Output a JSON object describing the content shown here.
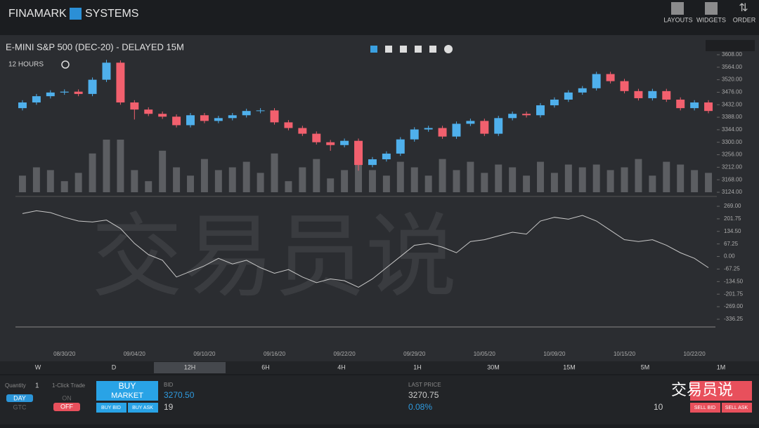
{
  "header": {
    "brand": "FINAMARK",
    "brand_suffix": "SYSTEMS",
    "nav": [
      "LAYOUTS",
      "WIDGETS",
      "ORDER"
    ]
  },
  "chart_data": {
    "type": "candlestick",
    "title": "E-MINI S&P 500 (DEC-20) - DELAYED 15M",
    "interval": "12 HOURS",
    "categories": [
      null,
      null,
      null,
      "08/30/20",
      null,
      null,
      null,
      null,
      "09/04/20",
      null,
      null,
      null,
      null,
      "09/10/20",
      null,
      null,
      null,
      null,
      "09/16/20",
      null,
      null,
      null,
      null,
      "09/22/20",
      null,
      null,
      null,
      null,
      "09/29/20",
      null,
      null,
      null,
      null,
      "10/05/20",
      null,
      null,
      null,
      null,
      "10/09/20",
      null,
      null,
      null,
      null,
      "10/15/20",
      null,
      null,
      null,
      null,
      "10/22/20",
      null
    ],
    "open": [
      3420,
      3440,
      3462,
      3475,
      3478,
      3470,
      3520,
      3580,
      3440,
      3415,
      3400,
      3390,
      3360,
      3395,
      3375,
      3385,
      3395,
      3410,
      3412,
      3370,
      3350,
      3330,
      3300,
      3290,
      3305,
      3220,
      3240,
      3260,
      3310,
      3345,
      3350,
      3320,
      3365,
      3375,
      3330,
      3385,
      3400,
      3395,
      3430,
      3450,
      3475,
      3490,
      3540,
      3515,
      3480,
      3455,
      3480,
      3450,
      3420,
      3440
    ],
    "high": [
      3448,
      3470,
      3483,
      3486,
      3486,
      3528,
      3590,
      3588,
      3448,
      3423,
      3408,
      3398,
      3403,
      3403,
      3393,
      3403,
      3418,
      3420,
      3420,
      3378,
      3358,
      3338,
      3308,
      3313,
      3313,
      3248,
      3268,
      3318,
      3353,
      3358,
      3358,
      3373,
      3383,
      3383,
      3393,
      3408,
      3408,
      3438,
      3458,
      3483,
      3498,
      3548,
      3548,
      3523,
      3488,
      3488,
      3488,
      3458,
      3448,
      3448
    ],
    "low": [
      3412,
      3432,
      3454,
      3467,
      3462,
      3462,
      3512,
      3432,
      3380,
      3392,
      3382,
      3352,
      3352,
      3367,
      3367,
      3377,
      3387,
      3402,
      3362,
      3342,
      3322,
      3292,
      3270,
      3282,
      3200,
      3212,
      3232,
      3252,
      3302,
      3337,
      3312,
      3312,
      3357,
      3322,
      3322,
      3377,
      3387,
      3387,
      3422,
      3442,
      3467,
      3482,
      3507,
      3472,
      3447,
      3447,
      3442,
      3412,
      3412,
      3402
    ],
    "close": [
      3440,
      3462,
      3475,
      3478,
      3470,
      3520,
      3580,
      3440,
      3415,
      3400,
      3390,
      3360,
      3395,
      3375,
      3385,
      3395,
      3410,
      3412,
      3370,
      3350,
      3330,
      3300,
      3290,
      3305,
      3220,
      3240,
      3260,
      3310,
      3345,
      3350,
      3320,
      3365,
      3375,
      3330,
      3385,
      3400,
      3395,
      3430,
      3450,
      3475,
      3490,
      3540,
      3515,
      3480,
      3455,
      3480,
      3450,
      3420,
      3440,
      3410
    ],
    "up_color": "#4fb0ec",
    "down_color": "#f2606e",
    "volume": [
      30,
      45,
      40,
      20,
      35,
      70,
      95,
      95,
      40,
      20,
      75,
      45,
      30,
      60,
      40,
      45,
      55,
      35,
      70,
      20,
      45,
      60,
      25,
      40,
      75,
      40,
      30,
      55,
      45,
      30,
      60,
      40,
      55,
      35,
      50,
      45,
      30,
      55,
      35,
      50,
      45,
      50,
      40,
      45,
      60,
      30,
      55,
      50,
      40,
      35
    ],
    "volume_color": "#5c5e62",
    "ylim": [
      3124,
      3608
    ],
    "yticks": [
      {
        "value": 3124,
        "label": "3124.00"
      },
      {
        "value": 3168,
        "label": "3168.00"
      },
      {
        "value": 3212,
        "label": "3212.00"
      },
      {
        "value": 3256,
        "label": "3256.00"
      },
      {
        "value": 3300,
        "label": "3300.00"
      },
      {
        "value": 3344,
        "label": "3344.00"
      },
      {
        "value": 3388,
        "label": "3388.00"
      },
      {
        "value": 3432,
        "label": "3432.00"
      },
      {
        "value": 3476,
        "label": "3476.00"
      },
      {
        "value": 3520,
        "label": "3520.00"
      },
      {
        "value": 3564,
        "label": "3564.00"
      },
      {
        "value": 3608,
        "label": "3608.00"
      }
    ],
    "indicator": {
      "type": "line",
      "color": "#c8c8c8",
      "values": [
        230,
        245,
        235,
        210,
        190,
        185,
        195,
        150,
        70,
        10,
        -20,
        -110,
        -80,
        -50,
        -10,
        -40,
        -20,
        -60,
        -90,
        -70,
        -110,
        -140,
        -120,
        -130,
        -165,
        -120,
        -60,
        0,
        60,
        70,
        50,
        20,
        80,
        90,
        110,
        130,
        120,
        190,
        210,
        200,
        220,
        190,
        140,
        90,
        80,
        90,
        60,
        20,
        -10,
        -60
      ],
      "ylim": [
        -336.25,
        269
      ],
      "yticks": [
        {
          "value": 269,
          "label": "269.00"
        },
        {
          "value": 201.75,
          "label": "201.75"
        },
        {
          "value": 134.5,
          "label": "134.50"
        },
        {
          "value": 67.25,
          "label": "67.25"
        },
        {
          "value": 0,
          "label": "0.00"
        },
        {
          "value": -67.25,
          "label": "-67.25"
        },
        {
          "value": -134.5,
          "label": "-134.50"
        },
        {
          "value": -201.75,
          "label": "-201.75"
        },
        {
          "value": -269,
          "label": "-269.00"
        },
        {
          "value": -336.25,
          "label": "-336.25"
        }
      ]
    }
  },
  "watermark": "交易员说",
  "timeframes": {
    "options": [
      "W",
      "D",
      "12H",
      "6H",
      "4H",
      "1H",
      "30M",
      "15M",
      "5M",
      "1M"
    ],
    "active": 2
  },
  "order": {
    "quantity_label": "Quantity",
    "quantity": "1",
    "one_click_label": "1-Click Trade",
    "day": "DAY",
    "gtc": "GTC",
    "on": "ON",
    "off": "OFF",
    "buy": "BUY",
    "market": "MARKET",
    "buy_bid": "BUY BID",
    "buy_ask": "BUY ASK",
    "bid_label": "BID",
    "bid": "3270.50",
    "bid_size": "19",
    "last_label": "LAST PRICE",
    "last": "3270.75",
    "change": "0.08%",
    "ask_size": "10",
    "sell_bid": "SELL BID",
    "sell_ask": "SELL ASK"
  }
}
